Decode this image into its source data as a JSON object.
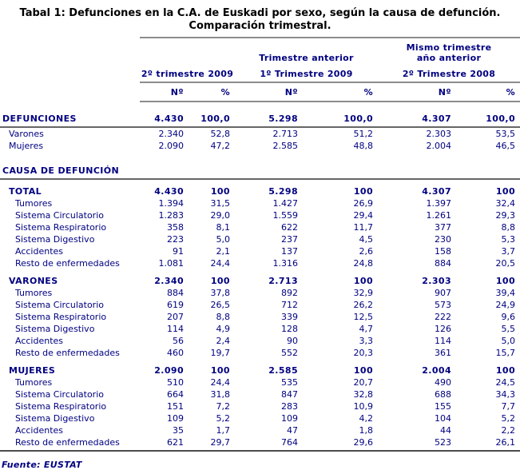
{
  "title": {
    "line1": "Tabal 1: Defunciones en la C.A. de Euskadi por sexo, según la causa de defunción.",
    "line2": "Comparación trimestral."
  },
  "colors": {
    "text_navy": "#000080",
    "title_black": "#000000",
    "rule_gray": "#8c8c8c",
    "rule_dark": "#666666"
  },
  "table": {
    "header": {
      "group2_label": "Trimestre anterior",
      "group3_label_line1": "Mismo trimestre",
      "group3_label_line2": "año anterior",
      "periods": [
        "2º trimestre 2009",
        "1º Trimestre 2009",
        "2º Trimestre 2008"
      ],
      "unit_n": "Nº",
      "unit_pct": "%"
    },
    "defunciones": {
      "label": "DEFUNCIONES",
      "values": [
        "4.430",
        "100,0",
        "5.298",
        "100,0",
        "4.307",
        "100,0"
      ],
      "rows": [
        {
          "label": "Varones",
          "values": [
            "2.340",
            "52,8",
            "2.713",
            "51,2",
            "2.303",
            "53,5"
          ]
        },
        {
          "label": "Mujeres",
          "values": [
            "2.090",
            "47,2",
            "2.585",
            "48,8",
            "2.004",
            "46,5"
          ]
        }
      ]
    },
    "causa_section_label": "CAUSA DE DEFUNCIÓN",
    "causa_groups": [
      {
        "label": "TOTAL",
        "values": [
          "4.430",
          "100",
          "5.298",
          "100",
          "4.307",
          "100"
        ],
        "rows": [
          {
            "label": "Tumores",
            "values": [
              "1.394",
              "31,5",
              "1.427",
              "26,9",
              "1.397",
              "32,4"
            ]
          },
          {
            "label": "Sistema Circulatorio",
            "values": [
              "1.283",
              "29,0",
              "1.559",
              "29,4",
              "1.261",
              "29,3"
            ]
          },
          {
            "label": "Sistema Respiratorio",
            "values": [
              "358",
              "8,1",
              "622",
              "11,7",
              "377",
              "8,8"
            ]
          },
          {
            "label": "Sistema Digestivo",
            "values": [
              "223",
              "5,0",
              "237",
              "4,5",
              "230",
              "5,3"
            ]
          },
          {
            "label": "Accidentes",
            "values": [
              "91",
              "2,1",
              "137",
              "2,6",
              "158",
              "3,7"
            ]
          },
          {
            "label": "Resto de enfermedades",
            "values": [
              "1.081",
              "24,4",
              "1.316",
              "24,8",
              "884",
              "20,5"
            ]
          }
        ]
      },
      {
        "label": "VARONES",
        "values": [
          "2.340",
          "100",
          "2.713",
          "100",
          "2.303",
          "100"
        ],
        "rows": [
          {
            "label": "Tumores",
            "values": [
              "884",
              "37,8",
              "892",
              "32,9",
              "907",
              "39,4"
            ]
          },
          {
            "label": "Sistema Circulatorio",
            "values": [
              "619",
              "26,5",
              "712",
              "26,2",
              "573",
              "24,9"
            ]
          },
          {
            "label": "Sistema Respiratorio",
            "values": [
              "207",
              "8,8",
              "339",
              "12,5",
              "222",
              "9,6"
            ]
          },
          {
            "label": "Sistema Digestivo",
            "values": [
              "114",
              "4,9",
              "128",
              "4,7",
              "126",
              "5,5"
            ]
          },
          {
            "label": "Accidentes",
            "values": [
              "56",
              "2,4",
              "90",
              "3,3",
              "114",
              "5,0"
            ]
          },
          {
            "label": "Resto de enfermedades",
            "values": [
              "460",
              "19,7",
              "552",
              "20,3",
              "361",
              "15,7"
            ]
          }
        ]
      },
      {
        "label": "MUJERES",
        "values": [
          "2.090",
          "100",
          "2.585",
          "100",
          "2.004",
          "100"
        ],
        "rows": [
          {
            "label": "Tumores",
            "values": [
              "510",
              "24,4",
              "535",
              "20,7",
              "490",
              "24,5"
            ]
          },
          {
            "label": "Sistema Circulatorio",
            "values": [
              "664",
              "31,8",
              "847",
              "32,8",
              "688",
              "34,3"
            ]
          },
          {
            "label": "Sistema Respiratorio",
            "values": [
              "151",
              "7,2",
              "283",
              "10,9",
              "155",
              "7,7"
            ]
          },
          {
            "label": "Sistema Digestivo",
            "values": [
              "109",
              "5,2",
              "109",
              "4,2",
              "104",
              "5,2"
            ]
          },
          {
            "label": "Accidentes",
            "values": [
              "35",
              "1,7",
              "47",
              "1,8",
              "44",
              "2,2"
            ]
          },
          {
            "label": "Resto de enfermedades",
            "values": [
              "621",
              "29,7",
              "764",
              "29,6",
              "523",
              "26,1"
            ]
          }
        ]
      }
    ]
  },
  "footer": {
    "source": "Fuente: EUSTAT"
  }
}
